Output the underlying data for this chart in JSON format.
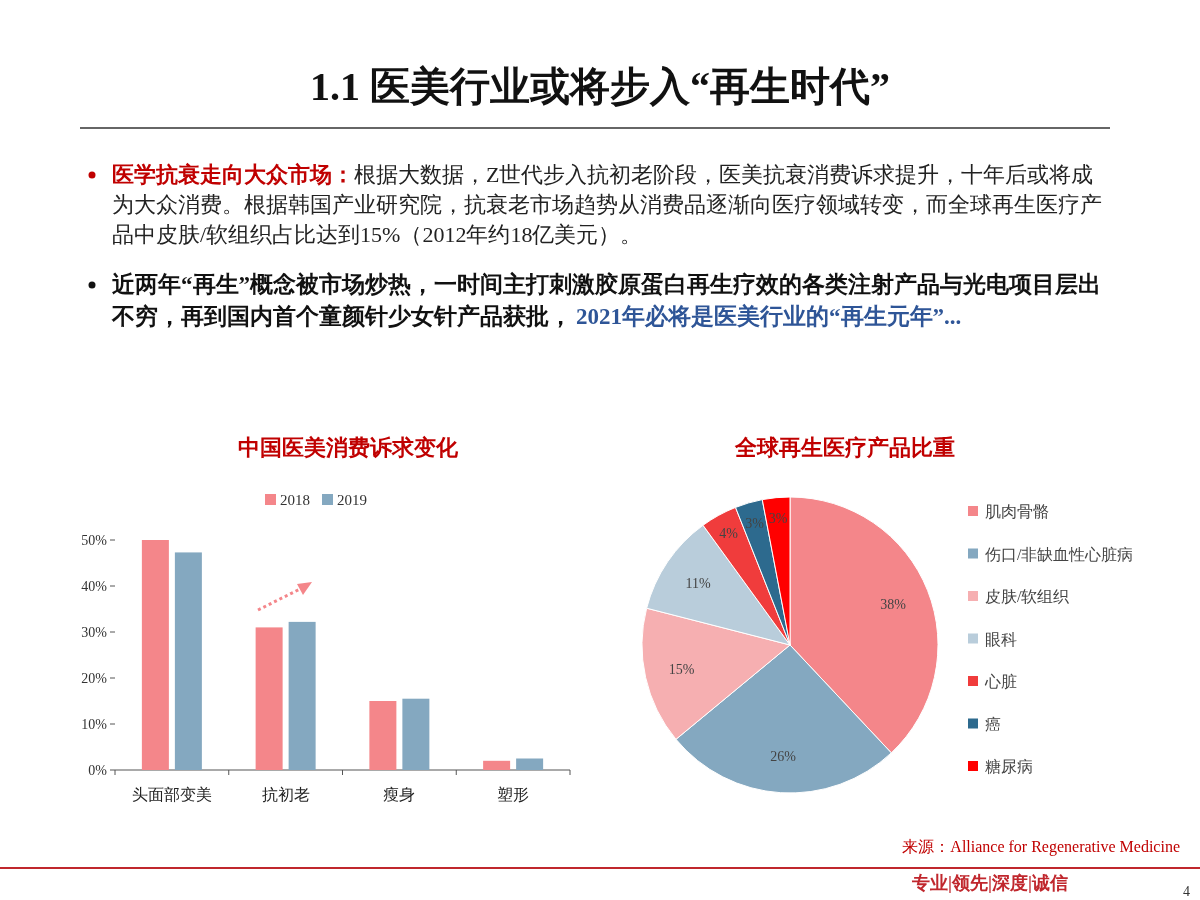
{
  "chart_data": [
    {
      "type": "other",
      "title": "1.1 医美行业或将步入“再生时代”",
      "annotations": [
        "医学抗衰走向大众市场：",
        "根据大数据，Z世代步入抗初老阶段，医美抗衰消费诉求提升，十年后或将成为大众消费。根据韩国产业研究院，抗衰老市场趋势从消费品逐渐向医疗领域转变，而全球再生医疗产品中皮肤/软组织占比达到15%（2012年约18亿美元）。",
        "近两年“再生”概念被市场炒热，一时间主打刺激胶原蛋白再生疗效的各类注射产品与光电项目层出不穷，再到国内首个童颜针少女针产品获批，",
        "2021年必将是医美行业的“再生元年”...",
        "来源：Alliance for Regenerative Medicine",
        "专业|领先|深度|诚信",
        "4"
      ]
    },
    {
      "type": "bar",
      "title": "中国医美消费诉求变化",
      "categories": [
        "头面部变美",
        "抗初老",
        "瘦身",
        "塑形"
      ],
      "series": [
        {
          "name": "2018",
          "color": "#f4868a",
          "values": [
            50,
            31,
            15,
            2
          ]
        },
        {
          "name": "2019",
          "color": "#84a8c0",
          "values": [
            47.3,
            32.2,
            15.5,
            2.5
          ]
        }
      ],
      "ylim": [
        0,
        50
      ],
      "yticks": [
        {
          "value": 0,
          "label": "0%"
        },
        {
          "value": 10,
          "label": "10%"
        },
        {
          "value": 20,
          "label": "20%"
        },
        {
          "value": 30,
          "label": "30%"
        },
        {
          "value": 40,
          "label": "40%"
        },
        {
          "value": 50,
          "label": "50%"
        }
      ],
      "legend": "top"
    },
    {
      "type": "pie",
      "title": "全球再生医疗产品比重",
      "categories": [
        "肌肉骨骼",
        "伤口/非缺血性心脏病",
        "皮肤/软组织",
        "眼科",
        "心脏",
        "癌",
        "糖尿病"
      ],
      "values": [
        38,
        26,
        15,
        11,
        4,
        3,
        3
      ],
      "colors": [
        "#f4868a",
        "#84a8c0",
        "#f6afb1",
        "#b9cddb",
        "#f03c3c",
        "#2d6a8e",
        "#ff0000"
      ],
      "value_labels": [
        "38%",
        "26%",
        "15%",
        "11%",
        "4%",
        "3%",
        "3%"
      ],
      "legend": "right"
    }
  ]
}
